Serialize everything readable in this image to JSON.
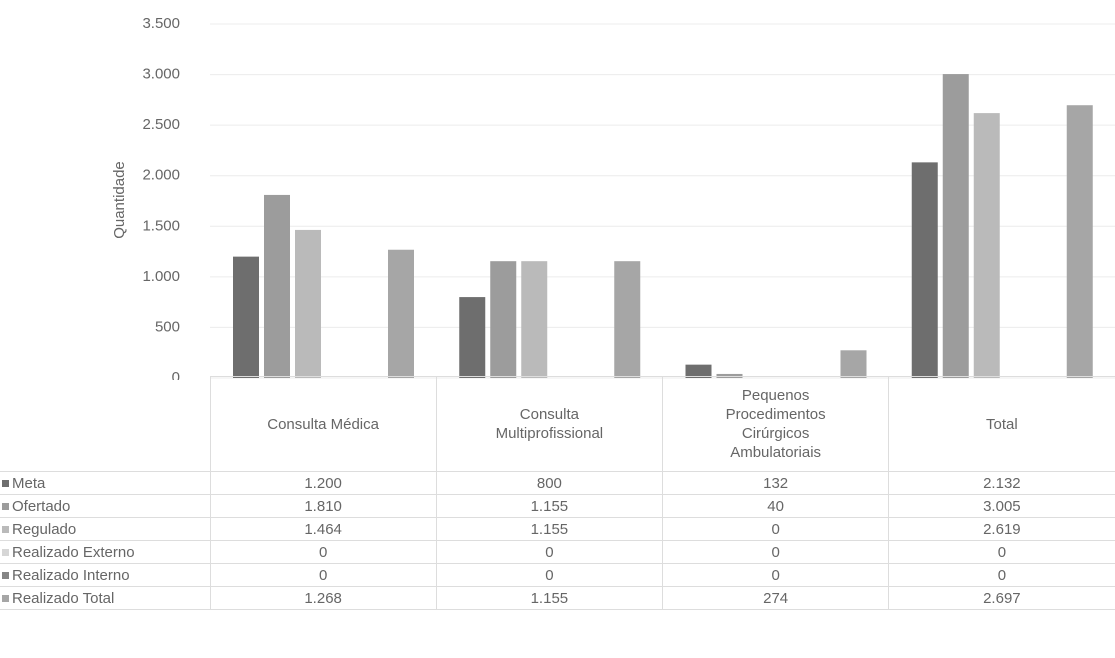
{
  "chart_data": {
    "type": "bar",
    "y_label": "Quantidade",
    "categories": [
      "Consulta Médica",
      "Consulta Multiprofissional",
      "Pequenos Procedimentos Cirúrgicos Ambulatoriais",
      "Total"
    ],
    "ylim": [
      0,
      3500
    ],
    "yticks": [
      0,
      500,
      {
        "value": 1000,
        "label": "1.000"
      },
      {
        "value": 1500,
        "label": "1.500"
      },
      {
        "value": 2000,
        "label": "2.000"
      },
      {
        "value": 2500,
        "label": "2.500"
      },
      {
        "value": 3000,
        "label": "3.000"
      },
      {
        "value": 3500,
        "label": "3.500"
      }
    ],
    "grid": true,
    "series": [
      {
        "name": "Meta",
        "color": "#6e6e6e",
        "values": [
          1200,
          800,
          132,
          2132
        ],
        "value_labels": [
          "1.200",
          "800",
          "132",
          "2.132"
        ]
      },
      {
        "name": "Ofertado",
        "color": "#9c9c9c",
        "values": [
          1810,
          1155,
          40,
          3005
        ],
        "value_labels": [
          "1.810",
          "1.155",
          "40",
          "3.005"
        ]
      },
      {
        "name": "Regulado",
        "color": "#bababa",
        "values": [
          1464,
          1155,
          0,
          2619
        ],
        "value_labels": [
          "1.464",
          "1.155",
          "0",
          "2.619"
        ]
      },
      {
        "name": "Realizado Externo",
        "color": "#d6d6d6",
        "values": [
          0,
          0,
          0,
          0
        ],
        "value_labels": [
          "0",
          "0",
          "0",
          "0"
        ]
      },
      {
        "name": "Realizado Interno",
        "color": "#858585",
        "values": [
          0,
          0,
          0,
          0
        ],
        "value_labels": [
          "0",
          "0",
          "0",
          "0"
        ]
      },
      {
        "name": "Realizado Total",
        "color": "#a6a6a6",
        "values": [
          1268,
          1155,
          274,
          2697
        ],
        "value_labels": [
          "1.268",
          "1.155",
          "274",
          "2.697"
        ]
      }
    ]
  }
}
